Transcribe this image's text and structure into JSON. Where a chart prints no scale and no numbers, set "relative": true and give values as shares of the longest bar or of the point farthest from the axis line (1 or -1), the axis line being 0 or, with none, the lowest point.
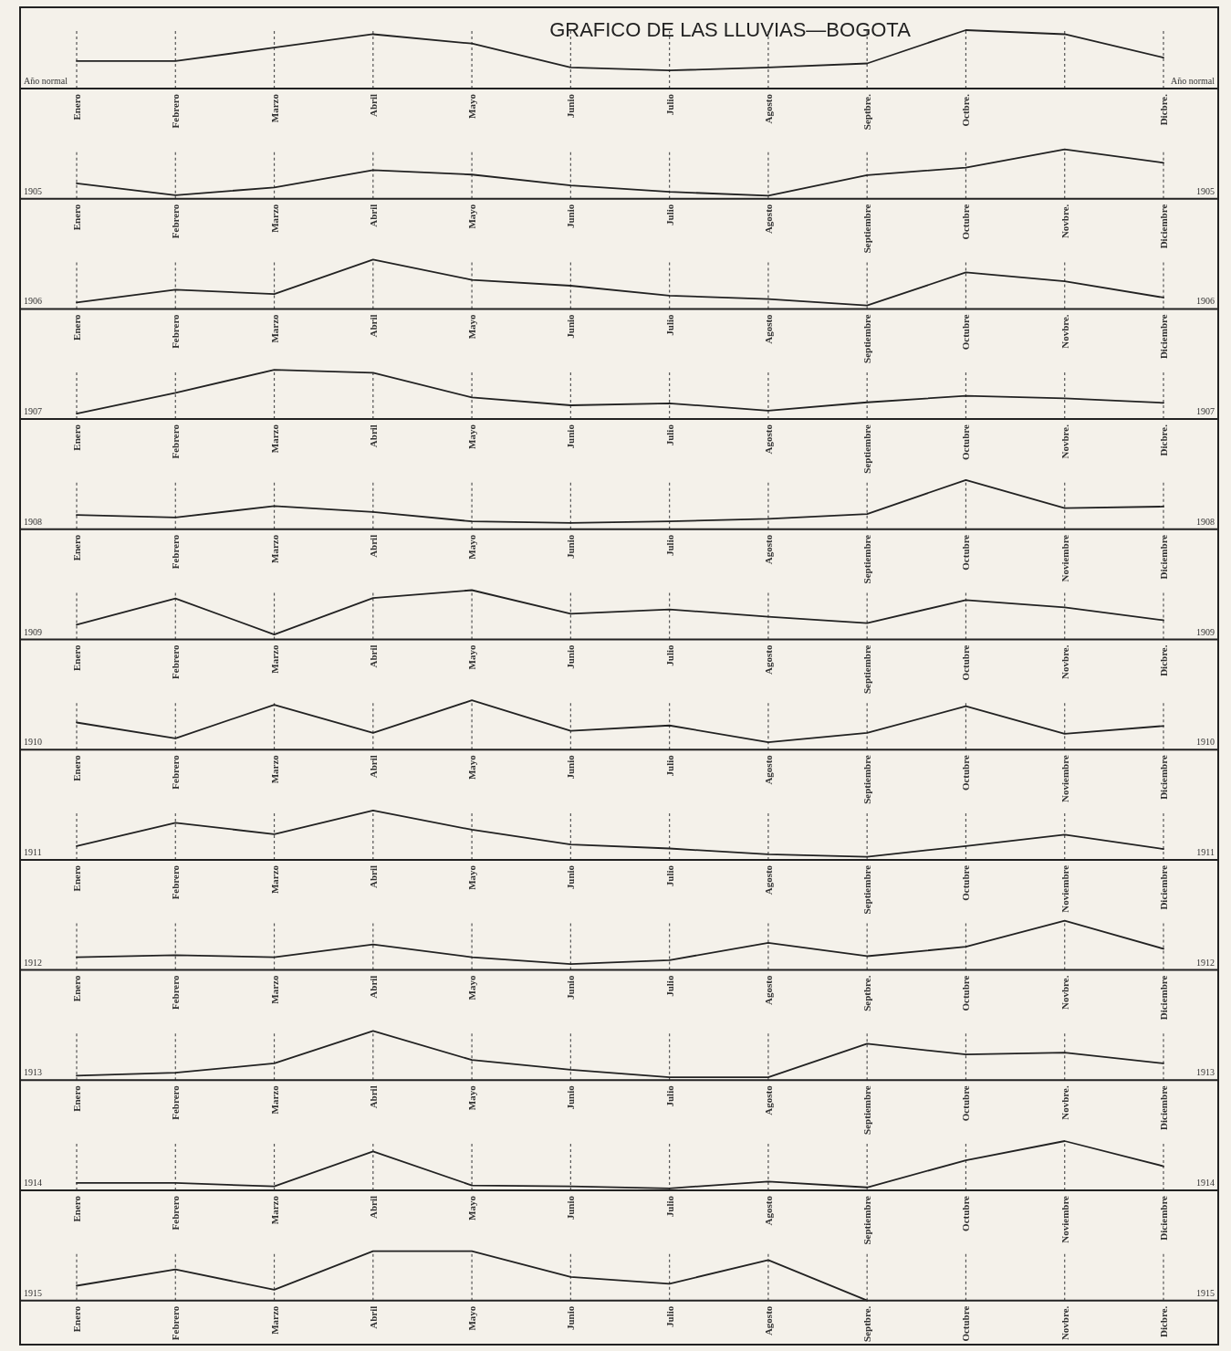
{
  "chart_data": [
    {
      "type": "line",
      "title": "GRAFICO DE LAS LLUVIAS—BOGOTA",
      "ylabel": "Año normal",
      "relative": true,
      "grid": "x",
      "color": "#222222",
      "categories": [
        "Enero",
        "Febrero",
        "Marzo",
        "Abril",
        "Mayo",
        "Junio",
        "Julio",
        "Agosto",
        "Septbre.",
        "Octbre.",
        null,
        "Dicbre."
      ],
      "values": [
        0.47,
        0.47,
        0.7,
        0.93,
        0.77,
        0.36,
        0.31,
        0.36,
        0.43,
        1,
        0.93,
        0.53
      ]
    },
    {
      "type": "line",
      "ylabel": "1905",
      "relative": true,
      "grid": "x",
      "color": "#222222",
      "categories": [
        "Enero",
        "Febrero",
        "Marzo",
        "Abril",
        "Mayo",
        "Junio",
        "Julio",
        "Agosto",
        "Septiembre",
        "Octubre",
        "Novbre.",
        "Diciembre"
      ],
      "values": [
        0.31,
        0.07,
        0.23,
        0.58,
        0.49,
        0.27,
        0.14,
        0.06,
        0.48,
        0.63,
        1,
        0.73
      ]
    },
    {
      "type": "line",
      "ylabel": "1906",
      "relative": true,
      "grid": "x",
      "color": "#222222",
      "categories": [
        "Enero",
        "Febrero",
        "Marzo",
        "Abril",
        "Mayo",
        "Junio",
        "Julio",
        "Agosto",
        "Septiembre",
        "Octubre",
        "Novbre.",
        "Diciembre"
      ],
      "values": [
        0.13,
        0.39,
        0.3,
        1,
        0.59,
        0.47,
        0.27,
        0.2,
        0.07,
        0.74,
        0.56,
        0.23
      ]
    },
    {
      "type": "line",
      "ylabel": "1907",
      "relative": true,
      "grid": "x",
      "color": "#222222",
      "categories": [
        "Enero",
        "Febrero",
        "Marzo",
        "Abril",
        "Mayo",
        "Junio",
        "Julio",
        "Agosto",
        "Septiembre",
        "Octubre",
        "Novbre.",
        "Dicbre."
      ],
      "values": [
        0.11,
        0.53,
        1,
        0.94,
        0.44,
        0.28,
        0.32,
        0.17,
        0.34,
        0.47,
        0.42,
        0.33
      ]
    },
    {
      "type": "line",
      "ylabel": "1908",
      "relative": true,
      "grid": "x",
      "color": "#222222",
      "categories": [
        "Enero",
        "Febrero",
        "Marzo",
        "Abril",
        "Mayo",
        "Junio",
        "Julio",
        "Agosto",
        "Septiembre",
        "Octubre",
        "Noviembre",
        "Diciembre"
      ],
      "values": [
        0.29,
        0.24,
        0.47,
        0.35,
        0.16,
        0.13,
        0.16,
        0.21,
        0.31,
        1,
        0.43,
        0.46
      ]
    },
    {
      "type": "line",
      "ylabel": "1909",
      "relative": true,
      "grid": "x",
      "color": "#222222",
      "categories": [
        "Enero",
        "Febrero",
        "Marzo",
        "Abril",
        "Mayo",
        "Junio",
        "Julio",
        "Agosto",
        "Septiembre",
        "Octubre",
        "Novbre.",
        "Dicbre."
      ],
      "values": [
        0.3,
        0.83,
        0.1,
        0.84,
        1,
        0.52,
        0.61,
        0.46,
        0.33,
        0.8,
        0.65,
        0.39
      ]
    },
    {
      "type": "line",
      "ylabel": "1910",
      "relative": true,
      "grid": "x",
      "color": "#222222",
      "categories": [
        "Enero",
        "Febrero",
        "Marzo",
        "Abril",
        "Mayo",
        "Junio",
        "Julio",
        "Agosto",
        "Septiembre",
        "Octubre",
        "Noviembre",
        "Diciembre"
      ],
      "values": [
        0.55,
        0.23,
        0.91,
        0.34,
        1,
        0.38,
        0.49,
        0.15,
        0.34,
        0.88,
        0.32,
        0.48
      ]
    },
    {
      "type": "line",
      "ylabel": "1911",
      "relative": true,
      "grid": "x",
      "color": "#222222",
      "categories": [
        "Enero",
        "Febrero",
        "Marzo",
        "Abril",
        "Mayo",
        "Junio",
        "Julio",
        "Agosto",
        "Septiembre",
        "Octubre",
        "Noviembre",
        "Diciembre"
      ],
      "values": [
        0.28,
        0.75,
        0.52,
        1,
        0.61,
        0.31,
        0.23,
        0.11,
        0.06,
        0.28,
        0.51,
        0.22
      ]
    },
    {
      "type": "line",
      "ylabel": "1912",
      "relative": true,
      "grid": "x",
      "color": "#222222",
      "categories": [
        "Enero",
        "Febrero",
        "Marzo",
        "Abril",
        "Mayo",
        "Junio",
        "Julio",
        "Agosto",
        "Septbre.",
        "Octubre",
        "Novbre.",
        "Diciembre"
      ],
      "values": [
        0.26,
        0.3,
        0.26,
        0.52,
        0.26,
        0.12,
        0.2,
        0.55,
        0.28,
        0.47,
        1,
        0.43
      ]
    },
    {
      "type": "line",
      "ylabel": "1913",
      "relative": true,
      "grid": "x",
      "color": "#222222",
      "categories": [
        "Enero",
        "Febrero",
        "Marzo",
        "Abril",
        "Mayo",
        "Junio",
        "Julio",
        "Agosto",
        "Septiembre",
        "Octubre",
        "Novbre.",
        "Diciembre"
      ],
      "values": [
        0.09,
        0.15,
        0.34,
        1,
        0.41,
        0.21,
        0.06,
        0.06,
        0.74,
        0.52,
        0.56,
        0.34
      ]
    },
    {
      "type": "line",
      "ylabel": "1914",
      "relative": true,
      "grid": "x",
      "color": "#222222",
      "categories": [
        "Enero",
        "Febrero",
        "Marzo",
        "Abril",
        "Mayo",
        "Junio",
        "Julio",
        "Agosto",
        "Septiembre",
        "Octubre",
        "Noviembre",
        "Diciembre"
      ],
      "values": [
        0.15,
        0.15,
        0.08,
        0.79,
        0.1,
        0.08,
        0.04,
        0.18,
        0.06,
        0.61,
        1,
        0.49
      ]
    },
    {
      "type": "line",
      "ylabel": "1915",
      "relative": true,
      "grid": "x",
      "color": "#222222",
      "categories": [
        "Enero",
        "Febrero",
        "Marzo",
        "Abril",
        "Mayo",
        "Junio",
        "Julio",
        "Agosto",
        "Septbre.",
        "Octubre",
        "Novbre.",
        "Dicbre."
      ],
      "values": [
        0.3,
        0.63,
        0.22,
        1,
        1,
        0.48,
        0.34,
        0.82,
        0,
        null,
        null,
        null
      ]
    }
  ]
}
